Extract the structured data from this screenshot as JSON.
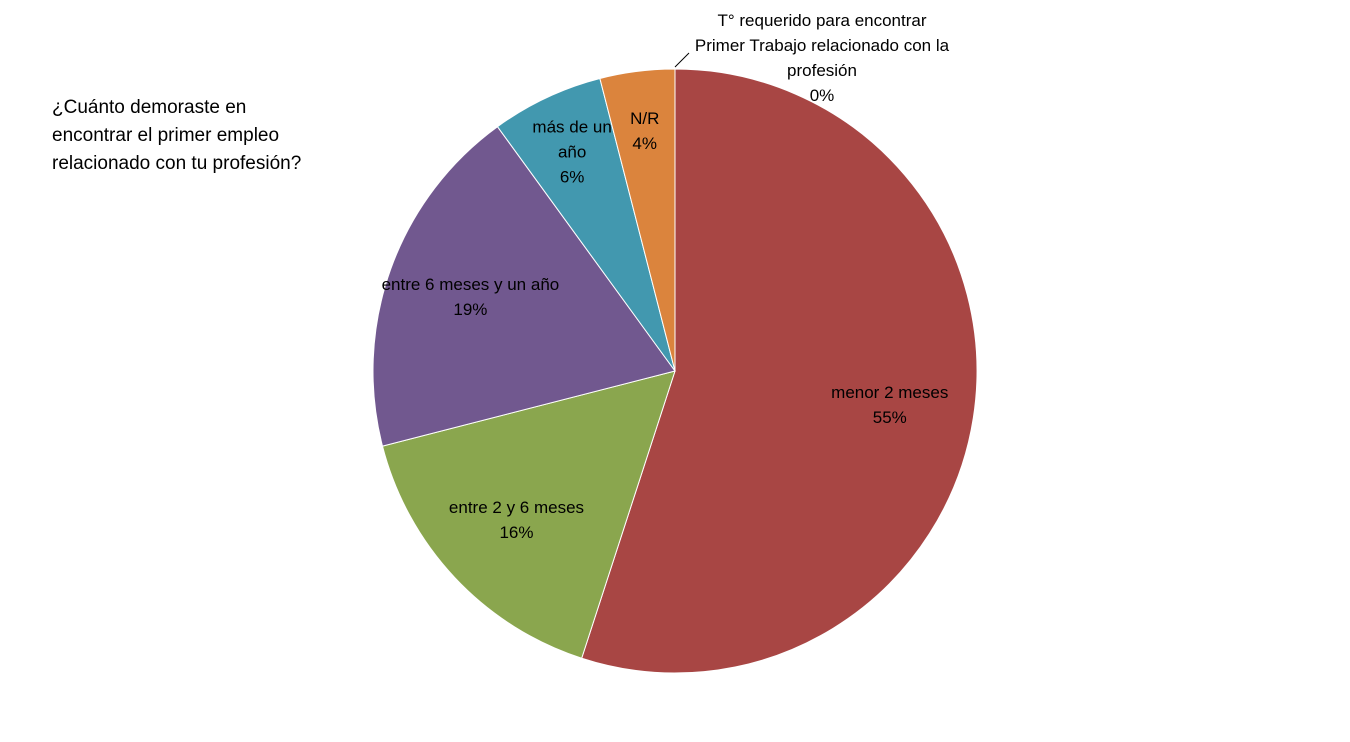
{
  "chart_data": {
    "type": "pie",
    "title": "¿Cuánto demoraste en encontrar el primer empleo relacionado con tu profesión?",
    "categories": [
      "T° requerido para encontrar Primer Trabajo relacionado con la profesión",
      "menor 2 meses",
      "entre 2 y 6 meses",
      "entre 6 meses y un año",
      "más de un año",
      "N/R"
    ],
    "values": [
      0,
      55,
      16,
      19,
      6,
      4
    ],
    "value_labels": [
      "0%",
      "55%",
      "16%",
      "19%",
      "6%",
      "4%"
    ],
    "colors": [
      "#4f81bd",
      "#a84644",
      "#8aa64e",
      "#71588f",
      "#4298af",
      "#db843d"
    ]
  }
}
